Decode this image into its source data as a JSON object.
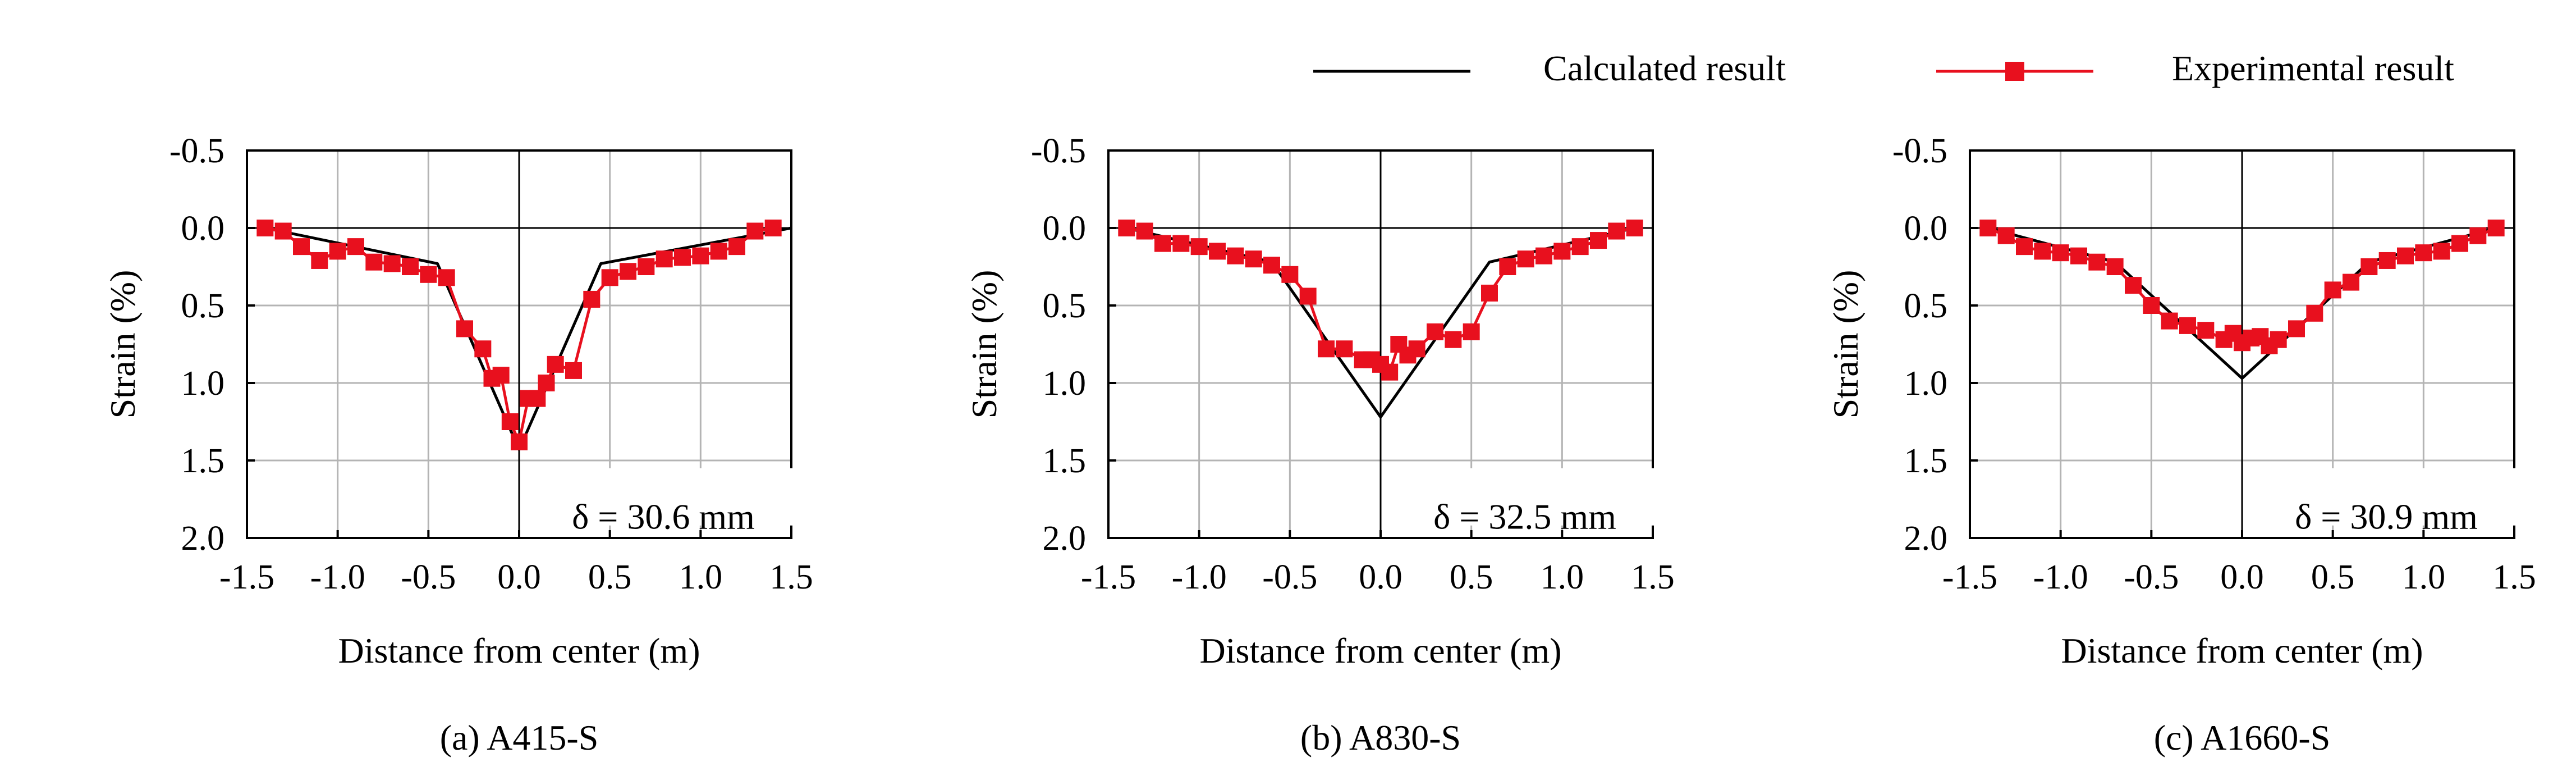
{
  "legend": {
    "calculated_label": "Calculated result",
    "experimental_label": "Experimental result"
  },
  "colors": {
    "calculated": "#000000",
    "experimental": "#e8101e",
    "grid": "#b4b4b4",
    "axis": "#000000"
  },
  "chart_data": [
    {
      "type": "line",
      "caption": "(a) A415-S",
      "xlabel": "Distance from center (m)",
      "ylabel": "Strain (%)",
      "xlim": [
        -1.5,
        1.5
      ],
      "ylim": [
        2.0,
        -0.5
      ],
      "x_ticks": [
        -1.5,
        -1.0,
        -0.5,
        0.0,
        0.5,
        1.0,
        1.5
      ],
      "x_tick_labels": [
        "-1.5",
        "-1.0",
        "-0.5",
        "0.0",
        "0.5",
        "1.0",
        "1.5"
      ],
      "y_ticks": [
        -0.5,
        0.0,
        0.5,
        1.0,
        1.5,
        2.0
      ],
      "y_tick_labels": [
        "-0.5",
        "0.0",
        "0.5",
        "1.0",
        "1.5",
        "2.0"
      ],
      "grid": true,
      "annotation": "δ = 30.6 mm",
      "series": [
        {
          "name": "Calculated result",
          "marker": "none",
          "x": [
            -1.4,
            -0.45,
            0.0,
            0.45,
            1.5
          ],
          "y": [
            0.0,
            0.23,
            1.43,
            0.23,
            0.0
          ]
        },
        {
          "name": "Experimental result",
          "marker": "square",
          "x": [
            -1.4,
            -1.3,
            -1.2,
            -1.1,
            -1.0,
            -0.9,
            -0.8,
            -0.7,
            -0.6,
            -0.5,
            -0.4,
            -0.3,
            -0.2,
            -0.15,
            -0.1,
            -0.05,
            0.0,
            0.05,
            0.1,
            0.15,
            0.2,
            0.3,
            0.4,
            0.5,
            0.6,
            0.7,
            0.8,
            0.9,
            1.0,
            1.1,
            1.2,
            1.3,
            1.4
          ],
          "y": [
            0.0,
            0.02,
            0.12,
            0.21,
            0.15,
            0.12,
            0.22,
            0.23,
            0.25,
            0.3,
            0.32,
            0.65,
            0.78,
            0.97,
            0.95,
            1.25,
            1.38,
            1.1,
            1.1,
            1.0,
            0.88,
            0.92,
            0.46,
            0.32,
            0.28,
            0.25,
            0.2,
            0.19,
            0.18,
            0.15,
            0.12,
            0.02,
            0.0
          ]
        }
      ]
    },
    {
      "type": "line",
      "caption": "(b) A830-S",
      "xlabel": "Distance from center (m)",
      "ylabel": "Strain (%)",
      "xlim": [
        -1.5,
        1.5
      ],
      "ylim": [
        2.0,
        -0.5
      ],
      "x_ticks": [
        -1.5,
        -1.0,
        -0.5,
        0.0,
        0.5,
        1.0,
        1.5
      ],
      "x_tick_labels": [
        "-1.5",
        "-1.0",
        "-0.5",
        "0.0",
        "0.5",
        "1.0",
        "1.5"
      ],
      "y_ticks": [
        -0.5,
        0.0,
        0.5,
        1.0,
        1.5,
        2.0
      ],
      "y_tick_labels": [
        "-0.5",
        "0.0",
        "0.5",
        "1.0",
        "1.5",
        "2.0"
      ],
      "grid": true,
      "annotation": "δ = 32.5 mm",
      "series": [
        {
          "name": "Calculated result",
          "marker": "none",
          "x": [
            -1.4,
            -0.6,
            0.0,
            0.6,
            1.4
          ],
          "y": [
            0.0,
            0.22,
            1.22,
            0.22,
            0.0
          ]
        },
        {
          "name": "Experimental result",
          "marker": "square",
          "x": [
            -1.4,
            -1.3,
            -1.2,
            -1.1,
            -1.0,
            -0.9,
            -0.8,
            -0.7,
            -0.6,
            -0.5,
            -0.4,
            -0.3,
            -0.2,
            -0.1,
            -0.05,
            0.0,
            0.05,
            0.1,
            0.15,
            0.2,
            0.3,
            0.4,
            0.5,
            0.6,
            0.7,
            0.8,
            0.9,
            1.0,
            1.1,
            1.2,
            1.3,
            1.4
          ],
          "y": [
            0.0,
            0.02,
            0.1,
            0.1,
            0.12,
            0.15,
            0.18,
            0.2,
            0.24,
            0.3,
            0.44,
            0.78,
            0.78,
            0.85,
            0.85,
            0.88,
            0.93,
            0.75,
            0.82,
            0.78,
            0.67,
            0.72,
            0.67,
            0.42,
            0.25,
            0.2,
            0.18,
            0.15,
            0.12,
            0.08,
            0.02,
            0.0
          ]
        }
      ]
    },
    {
      "type": "line",
      "caption": "(c) A1660-S",
      "xlabel": "Distance from center (m)",
      "ylabel": "Strain (%)",
      "xlim": [
        -1.5,
        1.5
      ],
      "ylim": [
        2.0,
        -0.5
      ],
      "x_ticks": [
        -1.5,
        -1.0,
        -0.5,
        0.0,
        0.5,
        1.0,
        1.5
      ],
      "x_tick_labels": [
        "-1.5",
        "-1.0",
        "-0.5",
        "0.0",
        "0.5",
        "1.0",
        "1.5"
      ],
      "y_ticks": [
        -0.5,
        0.0,
        0.5,
        1.0,
        1.5,
        2.0
      ],
      "y_tick_labels": [
        "-0.5",
        "0.0",
        "0.5",
        "1.0",
        "1.5",
        "2.0"
      ],
      "grid": true,
      "annotation": "δ = 30.9 mm",
      "series": [
        {
          "name": "Calculated result",
          "marker": "none",
          "x": [
            -1.4,
            -0.7,
            0.0,
            0.7,
            1.4
          ],
          "y": [
            0.0,
            0.22,
            0.97,
            0.22,
            0.0
          ]
        },
        {
          "name": "Experimental result",
          "marker": "square",
          "x": [
            -1.4,
            -1.3,
            -1.2,
            -1.1,
            -1.0,
            -0.9,
            -0.8,
            -0.7,
            -0.6,
            -0.5,
            -0.4,
            -0.3,
            -0.2,
            -0.1,
            -0.05,
            0.0,
            0.05,
            0.1,
            0.15,
            0.2,
            0.3,
            0.4,
            0.5,
            0.6,
            0.7,
            0.8,
            0.9,
            1.0,
            1.1,
            1.2,
            1.3,
            1.4
          ],
          "y": [
            0.0,
            0.05,
            0.12,
            0.15,
            0.16,
            0.18,
            0.22,
            0.25,
            0.37,
            0.5,
            0.6,
            0.63,
            0.66,
            0.72,
            0.68,
            0.74,
            0.71,
            0.7,
            0.76,
            0.72,
            0.65,
            0.55,
            0.4,
            0.35,
            0.25,
            0.21,
            0.18,
            0.16,
            0.15,
            0.1,
            0.05,
            0.0
          ]
        }
      ]
    }
  ]
}
